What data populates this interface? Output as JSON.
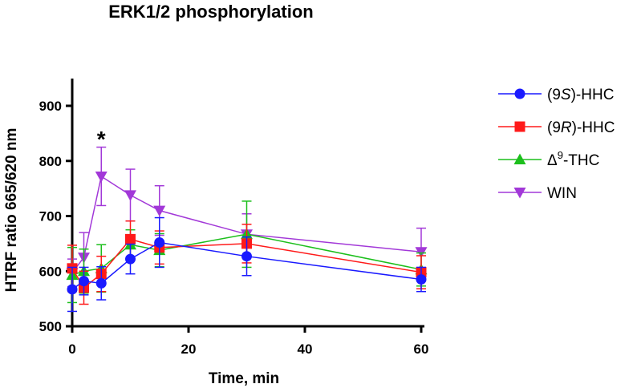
{
  "chart_data": {
    "type": "line",
    "title": "ERK1/2 phosphorylation",
    "xlabel": "Time, min",
    "ylabel": "HTRF ratio 665/620 nm",
    "xlim": [
      0,
      66
    ],
    "ylim": [
      500,
      950
    ],
    "xticks": [
      0,
      20,
      40,
      60
    ],
    "yticks": [
      500,
      600,
      700,
      800,
      900
    ],
    "x": [
      0,
      2,
      5,
      10,
      15,
      30,
      60
    ],
    "grid": false,
    "legend_position": "right",
    "annotations": [
      {
        "text": "*",
        "x": 5,
        "y": 843
      }
    ],
    "series": [
      {
        "name": "WIN",
        "legend_label": "WIN",
        "color": "#a238d8",
        "marker": "triangle-down",
        "values": [
          597,
          625,
          772,
          738,
          710,
          667,
          635
        ],
        "errors": [
          25,
          45,
          53,
          47,
          45,
          37,
          43
        ]
      },
      {
        "name": "Δ9-THC",
        "legend_prefix": "Δ",
        "legend_sup": "9",
        "legend_suffix": "-THC",
        "color": "#1cbf1c",
        "marker": "triangle-up",
        "values": [
          593,
          600,
          605,
          648,
          638,
          667,
          603
        ],
        "errors": [
          50,
          40,
          43,
          27,
          30,
          60,
          30
        ]
      },
      {
        "name": "(9R)-HHC",
        "legend_prefix": "(9",
        "legend_italic": "R",
        "legend_suffix": ")-HHC",
        "color": "#ff1a1a",
        "marker": "square",
        "values": [
          605,
          570,
          595,
          658,
          643,
          650,
          598
        ],
        "errors": [
          42,
          30,
          32,
          33,
          30,
          35,
          30
        ]
      },
      {
        "name": "(9S)-HHC",
        "legend_prefix": "(9",
        "legend_italic": "S",
        "legend_suffix": ")-HHC",
        "color": "#1a1aff",
        "marker": "circle",
        "values": [
          567,
          582,
          578,
          622,
          652,
          627,
          585
        ],
        "errors": [
          40,
          25,
          30,
          27,
          45,
          35,
          22
        ]
      }
    ]
  }
}
